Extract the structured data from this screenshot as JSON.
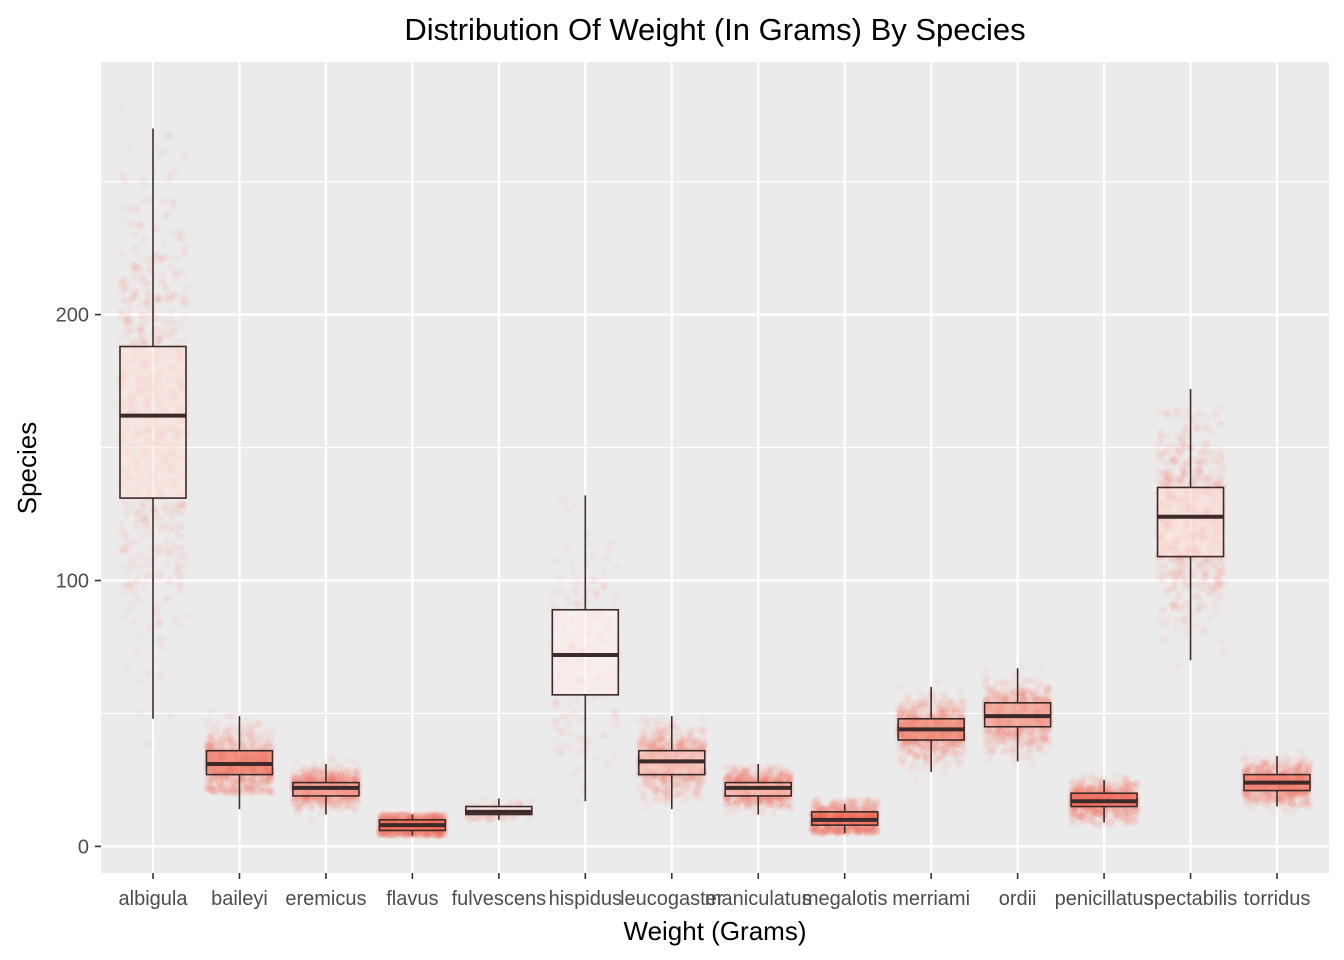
{
  "chart_data": {
    "type": "boxplot",
    "title": "Distribution Of Weight (In Grams) By Species",
    "xlabel": "Weight (Grams)",
    "ylabel": "Species",
    "ylim": [
      -10,
      295
    ],
    "y_ticks": [
      0,
      100,
      200
    ],
    "grid": true,
    "legend": "none",
    "colors": {
      "panel": "#ebebeb",
      "grid": "#ffffff",
      "point": "#fb6a4a",
      "box_outline": "#3b2a28",
      "tick_label": "#4d4d4d"
    },
    "categories": [
      "albigula",
      "baileyi",
      "eremicus",
      "flavus",
      "fulvescens",
      "hispidus",
      "leucogaster",
      "maniculatus",
      "megalotis",
      "merriami",
      "ordii",
      "penicillatus",
      "spectabilis",
      "torridus"
    ],
    "boxes": [
      {
        "category": "albigula",
        "lower_whisker": 48,
        "q1": 131,
        "median": 162,
        "q3": 188,
        "upper_whisker": 270,
        "n": 1200,
        "point_min": 30,
        "point_max": 280,
        "fill": "#fde3df"
      },
      {
        "category": "baileyi",
        "lower_whisker": 14,
        "q1": 27,
        "median": 31,
        "q3": 36,
        "upper_whisker": 49,
        "n": 2800,
        "point_min": 20,
        "point_max": 55,
        "fill": "#f26a55"
      },
      {
        "category": "eremicus",
        "lower_whisker": 12,
        "q1": 19,
        "median": 22,
        "q3": 24,
        "upper_whisker": 31,
        "n": 1100,
        "point_min": 10,
        "point_max": 35,
        "fill": "#f8a496"
      },
      {
        "category": "flavus",
        "lower_whisker": 4,
        "q1": 6,
        "median": 8,
        "q3": 10,
        "upper_whisker": 12,
        "n": 1400,
        "point_min": 4,
        "point_max": 12,
        "fill": "#f25b46"
      },
      {
        "category": "fulvescens",
        "lower_whisker": 10,
        "q1": 12,
        "median": 13,
        "q3": 15,
        "upper_whisker": 18,
        "n": 75,
        "point_min": 10,
        "point_max": 18,
        "fill": "#fde8e4"
      },
      {
        "category": "hispidus",
        "lower_whisker": 17,
        "q1": 57,
        "median": 72,
        "q3": 89,
        "upper_whisker": 132,
        "n": 180,
        "point_min": 17,
        "point_max": 140,
        "fill": "#fff0ee"
      },
      {
        "category": "leucogaster",
        "lower_whisker": 14,
        "q1": 27,
        "median": 32,
        "q3": 36,
        "upper_whisker": 49,
        "n": 1000,
        "point_min": 14,
        "point_max": 48,
        "fill": "#fbcdc4"
      },
      {
        "category": "maniculatus",
        "lower_whisker": 12,
        "q1": 19,
        "median": 22,
        "q3": 24,
        "upper_whisker": 31,
        "n": 850,
        "point_min": 12,
        "point_max": 30,
        "fill": "#fbd0c8"
      },
      {
        "category": "megalotis",
        "lower_whisker": 5,
        "q1": 8,
        "median": 10,
        "q3": 13,
        "upper_whisker": 16,
        "n": 2400,
        "point_min": 5,
        "point_max": 18,
        "fill": "#f25b46"
      },
      {
        "category": "merriami",
        "lower_whisker": 28,
        "q1": 40,
        "median": 44,
        "q3": 48,
        "upper_whisker": 60,
        "n": 10000,
        "point_min": 18,
        "point_max": 66,
        "fill": "#f08068"
      },
      {
        "category": "ordii",
        "lower_whisker": 32,
        "q1": 45,
        "median": 49,
        "q3": 54,
        "upper_whisker": 67,
        "n": 3000,
        "point_min": 22,
        "point_max": 70,
        "fill": "#f4a090"
      },
      {
        "category": "penicillatus",
        "lower_whisker": 9,
        "q1": 15,
        "median": 17,
        "q3": 20,
        "upper_whisker": 25,
        "n": 3100,
        "point_min": 8,
        "point_max": 28,
        "fill": "#f25b46"
      },
      {
        "category": "spectabilis",
        "lower_whisker": 70,
        "q1": 109,
        "median": 124,
        "q3": 135,
        "upper_whisker": 172,
        "n": 2300,
        "point_min": 50,
        "point_max": 165,
        "fill": "#fde3df"
      },
      {
        "category": "torridus",
        "lower_whisker": 15,
        "q1": 21,
        "median": 24,
        "q3": 27,
        "upper_whisker": 34,
        "n": 2200,
        "point_min": 12,
        "point_max": 46,
        "fill": "#f47260"
      }
    ]
  }
}
